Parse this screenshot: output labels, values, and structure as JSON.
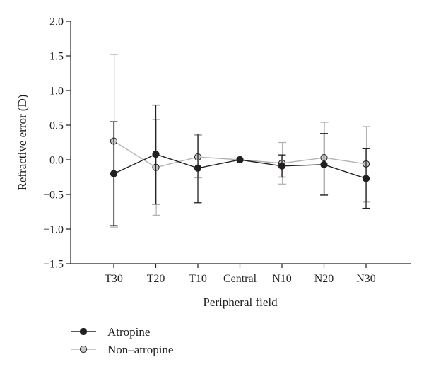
{
  "chart_data": {
    "type": "line",
    "title": "",
    "xlabel": "Peripheral field",
    "ylabel": "Refractive error (D)",
    "ylim": [
      -1.5,
      2.0
    ],
    "yticks": [
      "2.0",
      "1.5",
      "1.0",
      "0.5",
      "0.0",
      "-0.5",
      "-1.0",
      "-1.5"
    ],
    "ytick_values": [
      2.0,
      1.5,
      1.0,
      0.5,
      0.0,
      -0.5,
      -1.0,
      -1.5
    ],
    "categories": [
      "T30",
      "T20",
      "T10",
      "Central",
      "N10",
      "N20",
      "N30"
    ],
    "grid": false,
    "legend_position": "bottom-left",
    "series": [
      {
        "name": "Atropine",
        "color": "#231f20",
        "marker_fill": "#231f20",
        "values": [
          -0.2,
          0.08,
          -0.12,
          0.0,
          -0.09,
          -0.07,
          -0.27
        ],
        "err_upper": [
          0.55,
          0.79,
          0.37,
          0.0,
          0.07,
          0.38,
          0.16
        ],
        "err_lower": [
          -0.95,
          -0.64,
          -0.62,
          0.0,
          -0.25,
          -0.51,
          -0.7
        ]
      },
      {
        "name": "Non–atropine",
        "color": "#b3b3b3",
        "marker_fill": "#c8c8c8",
        "values": [
          0.27,
          -0.11,
          0.04,
          0.0,
          -0.05,
          0.03,
          -0.06
        ],
        "err_upper": [
          1.52,
          0.58,
          0.35,
          0.0,
          0.25,
          0.54,
          0.48
        ],
        "err_lower": [
          -0.97,
          -0.8,
          -0.26,
          0.0,
          -0.35,
          -0.5,
          -0.61
        ]
      }
    ]
  }
}
